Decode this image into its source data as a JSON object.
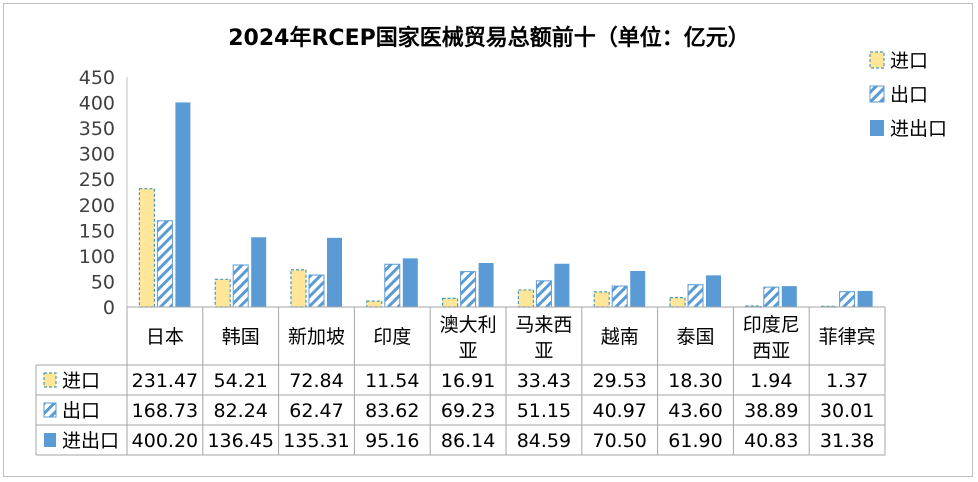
{
  "chart_data": {
    "type": "bar",
    "title": "2024年RCEP国家医械贸易总额前十（单位：亿元）",
    "categories": [
      "日本",
      "韩国",
      "新加坡",
      "印度",
      "澳大利亚",
      "马来西亚",
      "越南",
      "泰国",
      "印度尼西亚",
      "菲律宾"
    ],
    "category_lines": [
      [
        "日本"
      ],
      [
        "韩国"
      ],
      [
        "新加坡"
      ],
      [
        "印度"
      ],
      [
        "澳大利",
        "亚"
      ],
      [
        "马来西",
        "亚"
      ],
      [
        "越南"
      ],
      [
        "泰国"
      ],
      [
        "印度尼",
        "西亚"
      ],
      [
        "菲律宾"
      ]
    ],
    "series": [
      {
        "name": "进口",
        "values": [
          231.47,
          54.21,
          72.84,
          11.54,
          16.91,
          33.43,
          29.53,
          18.3,
          1.94,
          1.37
        ],
        "labels": [
          "231.47",
          "54.21",
          "72.84",
          "11.54",
          "16.91",
          "33.43",
          "29.53",
          "18.30",
          "1.94",
          "1.37"
        ],
        "color": "#FFE699",
        "stroke": "#4A9BB5",
        "pattern": "solid-dashed"
      },
      {
        "name": "出口",
        "values": [
          168.73,
          82.24,
          62.47,
          83.62,
          69.23,
          51.15,
          40.97,
          43.6,
          38.89,
          30.01
        ],
        "labels": [
          "168.73",
          "82.24",
          "62.47",
          "83.62",
          "69.23",
          "51.15",
          "40.97",
          "43.60",
          "38.89",
          "30.01"
        ],
        "color": "#5B9BD5",
        "stroke": "#5B9BD5",
        "pattern": "hatch"
      },
      {
        "name": "进出口",
        "values": [
          400.2,
          136.45,
          135.31,
          95.16,
          86.14,
          84.59,
          70.5,
          61.9,
          40.83,
          31.38
        ],
        "labels": [
          "400.20",
          "136.45",
          "135.31",
          "95.16",
          "86.14",
          "84.59",
          "70.50",
          "61.90",
          "40.83",
          "31.38"
        ],
        "color": "#5B9BD5",
        "stroke": "#5B9BD5",
        "pattern": "solid"
      }
    ],
    "yticks": [
      "0",
      "50",
      "100",
      "150",
      "200",
      "250",
      "300",
      "350",
      "400",
      "450"
    ],
    "ylim": [
      0,
      450
    ],
    "grid": false,
    "legend": "top-right",
    "data_table": true
  }
}
